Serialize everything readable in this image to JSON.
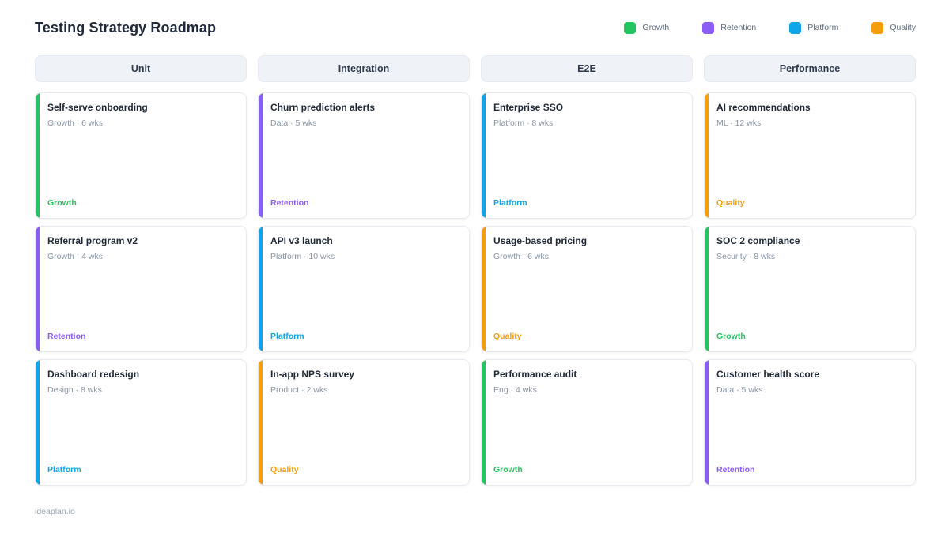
{
  "page": {
    "title": "Testing Strategy Roadmap",
    "footer": "ideaplan.io"
  },
  "colors": {
    "growth": "#22c55e",
    "retention": "#8b5cf6",
    "platform": "#0ea5e9",
    "quality": "#f59e0b"
  },
  "legend": [
    {
      "label": "Growth",
      "key": "growth"
    },
    {
      "label": "Retention",
      "key": "retention"
    },
    {
      "label": "Platform",
      "key": "platform"
    },
    {
      "label": "Quality",
      "key": "quality"
    }
  ],
  "columns": [
    {
      "header": "Unit",
      "cards": [
        {
          "title": "Self-serve onboarding",
          "meta": "Growth · 6 wks",
          "tag": "Growth",
          "key": "growth"
        },
        {
          "title": "Referral program v2",
          "meta": "Growth · 4 wks",
          "tag": "Retention",
          "key": "retention"
        },
        {
          "title": "Dashboard redesign",
          "meta": "Design · 8 wks",
          "tag": "Platform",
          "key": "platform"
        }
      ]
    },
    {
      "header": "Integration",
      "cards": [
        {
          "title": "Churn prediction alerts",
          "meta": "Data · 5 wks",
          "tag": "Retention",
          "key": "retention"
        },
        {
          "title": "API v3 launch",
          "meta": "Platform · 10 wks",
          "tag": "Platform",
          "key": "platform"
        },
        {
          "title": "In-app NPS survey",
          "meta": "Product · 2 wks",
          "tag": "Quality",
          "key": "quality"
        }
      ]
    },
    {
      "header": "E2E",
      "cards": [
        {
          "title": "Enterprise SSO",
          "meta": "Platform · 8 wks",
          "tag": "Platform",
          "key": "platform"
        },
        {
          "title": "Usage-based pricing",
          "meta": "Growth · 6 wks",
          "tag": "Quality",
          "key": "quality"
        },
        {
          "title": "Performance audit",
          "meta": "Eng · 4 wks",
          "tag": "Growth",
          "key": "growth"
        }
      ]
    },
    {
      "header": "Performance",
      "cards": [
        {
          "title": "AI recommendations",
          "meta": "ML · 12 wks",
          "tag": "Quality",
          "key": "quality"
        },
        {
          "title": "SOC 2 compliance",
          "meta": "Security · 8 wks",
          "tag": "Growth",
          "key": "growth"
        },
        {
          "title": "Customer health score",
          "meta": "Data · 5 wks",
          "tag": "Retention",
          "key": "retention"
        }
      ]
    }
  ]
}
